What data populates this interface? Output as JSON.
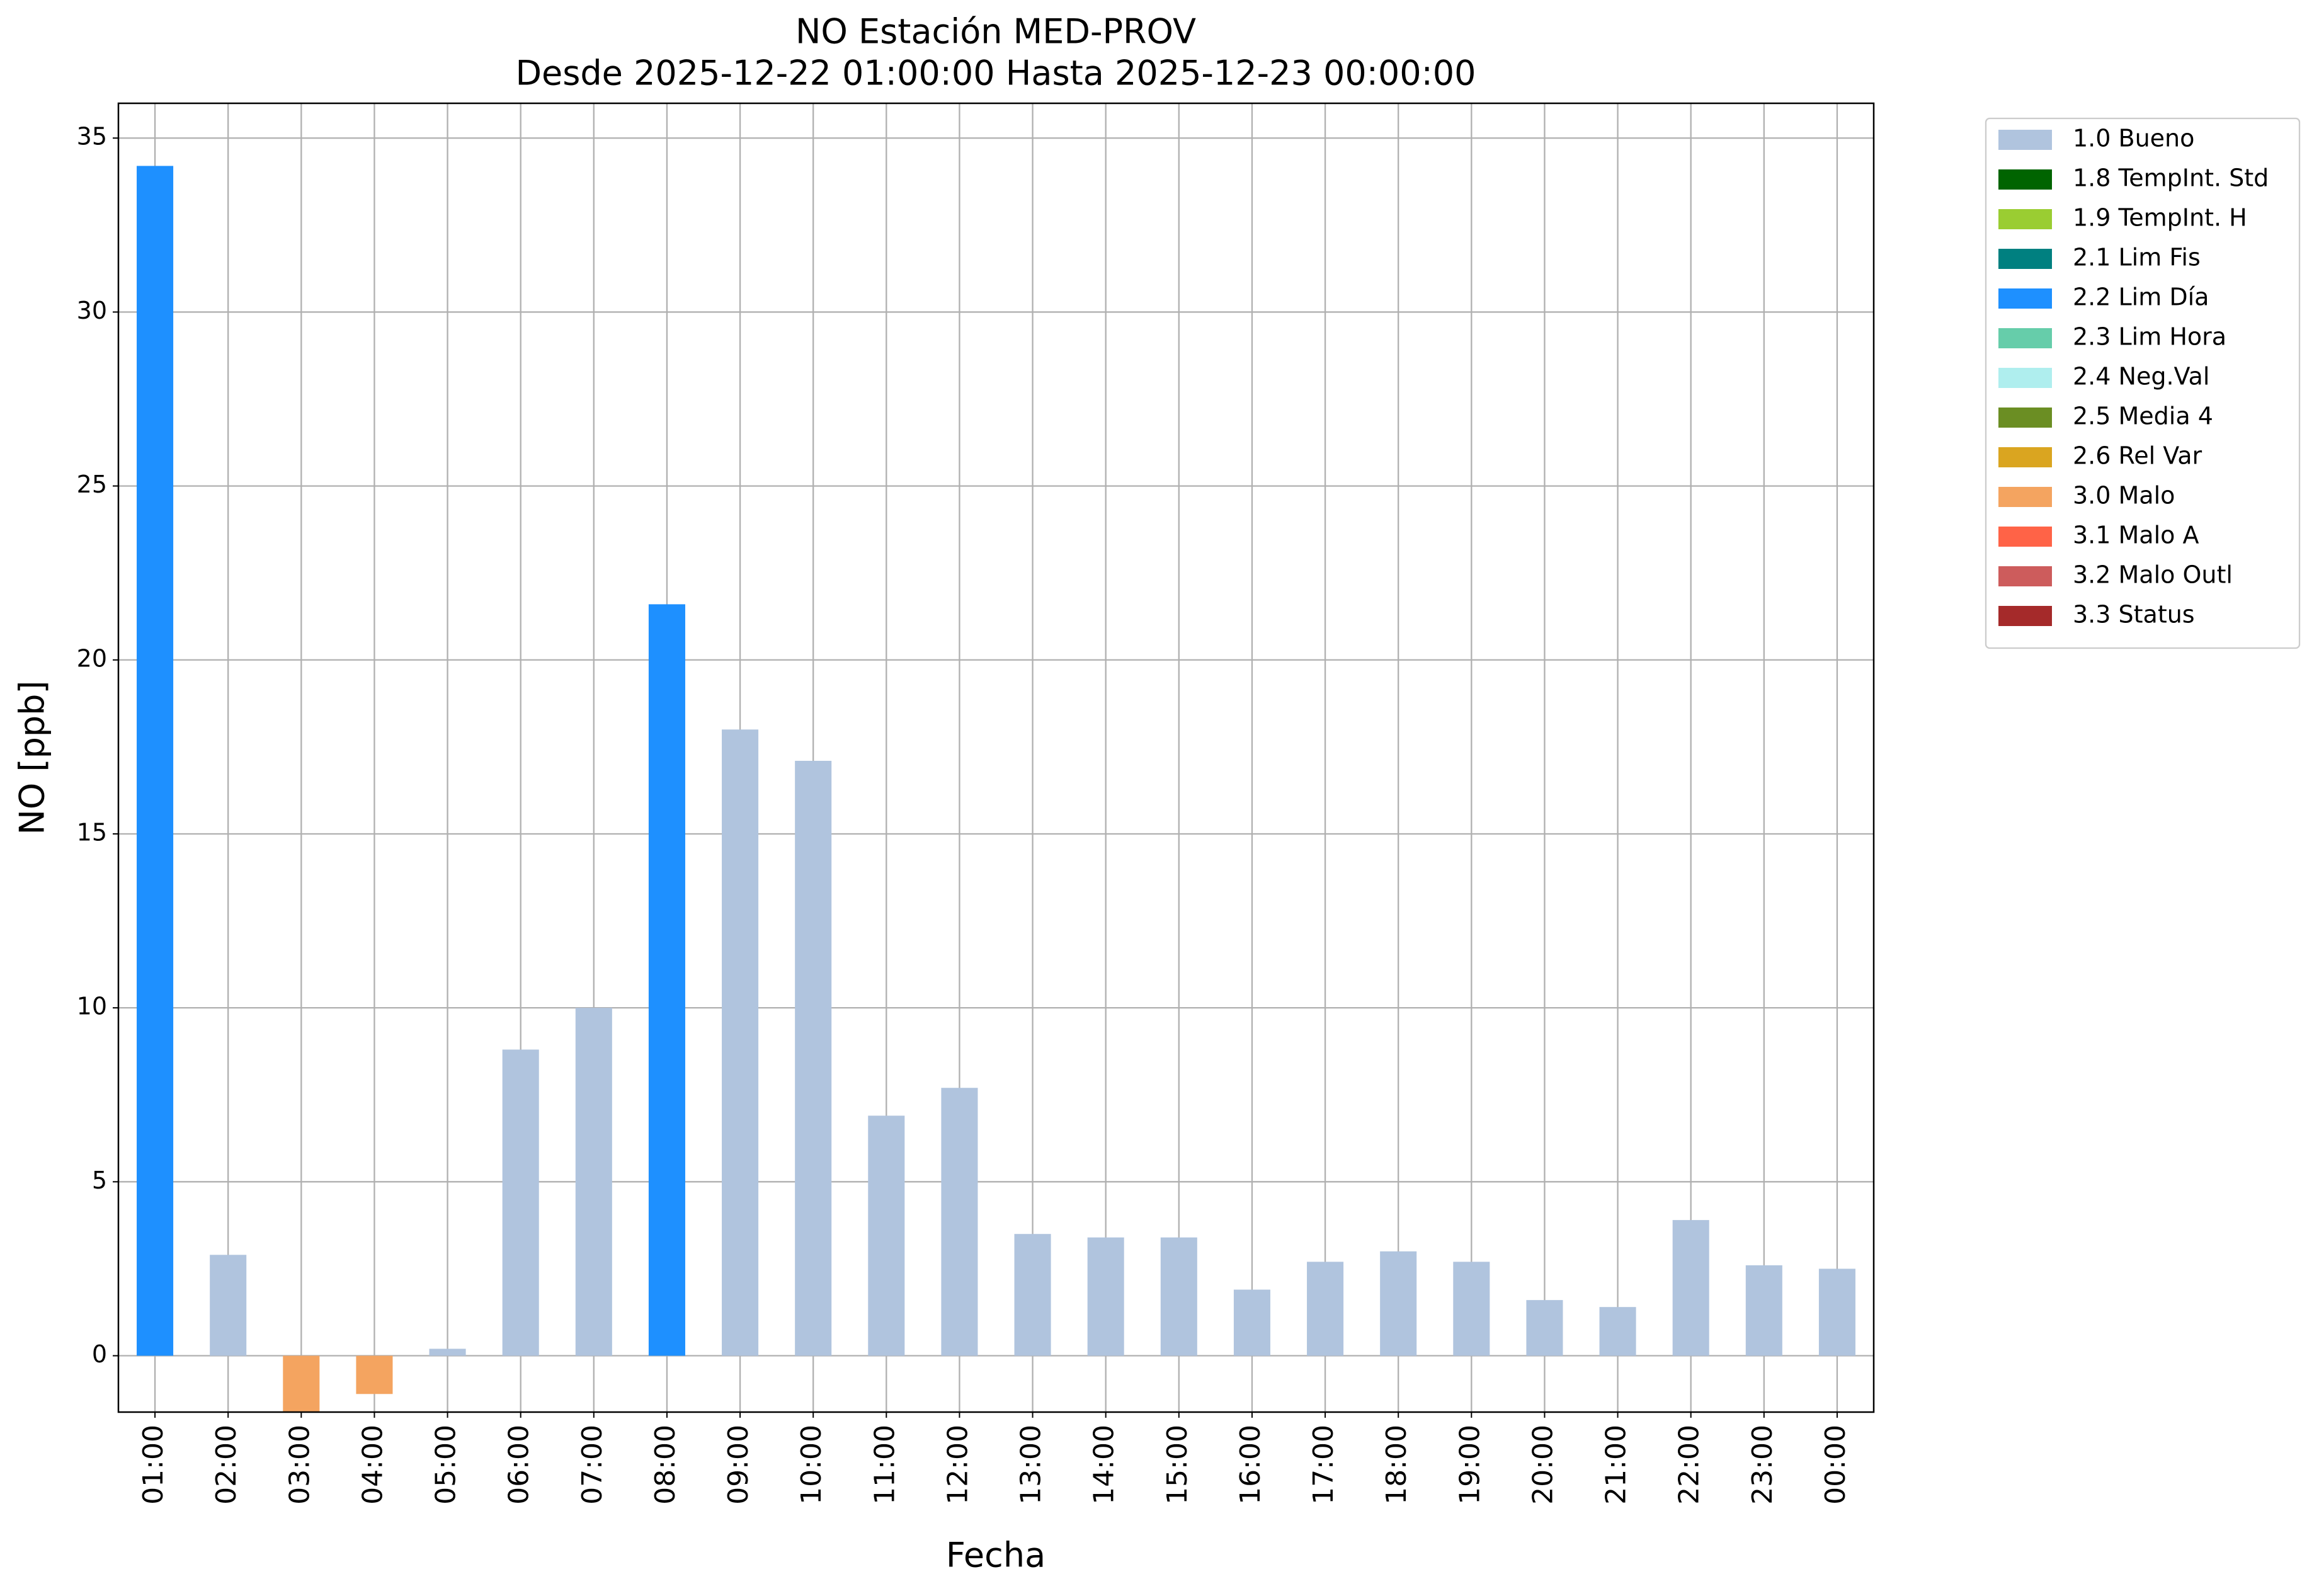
{
  "chart_data": {
    "type": "bar",
    "title": "NO Estación MED-PROV",
    "subtitle": "Desde 2025-12-22 01:00:00 Hasta 2025-12-23 00:00:00",
    "xlabel": "Fecha",
    "ylabel": "NO [ppb]",
    "categories": [
      "01:00",
      "02:00",
      "03:00",
      "04:00",
      "05:00",
      "06:00",
      "07:00",
      "08:00",
      "09:00",
      "10:00",
      "11:00",
      "12:00",
      "13:00",
      "14:00",
      "15:00",
      "16:00",
      "17:00",
      "18:00",
      "19:00",
      "20:00",
      "21:00",
      "22:00",
      "23:00",
      "00:00"
    ],
    "series": [
      {
        "name": "1.0 Bueno",
        "color": "#b0c4de",
        "values": [
          null,
          2.9,
          null,
          null,
          0.2,
          8.8,
          10.0,
          null,
          18.0,
          17.1,
          6.9,
          7.7,
          3.5,
          3.4,
          3.4,
          1.9,
          2.7,
          3.0,
          2.7,
          1.6,
          1.4,
          3.9,
          2.6,
          2.5
        ]
      },
      {
        "name": "1.8 TempInt. Std",
        "color": "#006400",
        "values": [
          null,
          null,
          null,
          null,
          null,
          null,
          null,
          null,
          null,
          null,
          null,
          null,
          null,
          null,
          null,
          null,
          null,
          null,
          null,
          null,
          null,
          null,
          null,
          null
        ]
      },
      {
        "name": "1.9 TempInt. H",
        "color": "#9acd32",
        "values": [
          null,
          null,
          null,
          null,
          null,
          null,
          null,
          null,
          null,
          null,
          null,
          null,
          null,
          null,
          null,
          null,
          null,
          null,
          null,
          null,
          null,
          null,
          null,
          null
        ]
      },
      {
        "name": "2.1 Lim Fis",
        "color": "#008080",
        "values": [
          null,
          null,
          null,
          null,
          null,
          null,
          null,
          null,
          null,
          null,
          null,
          null,
          null,
          null,
          null,
          null,
          null,
          null,
          null,
          null,
          null,
          null,
          null,
          null
        ]
      },
      {
        "name": "2.2 Lim Día",
        "color": "#1e90ff",
        "values": [
          34.2,
          null,
          null,
          null,
          null,
          null,
          null,
          21.6,
          null,
          null,
          null,
          null,
          null,
          null,
          null,
          null,
          null,
          null,
          null,
          null,
          null,
          null,
          null,
          null
        ]
      },
      {
        "name": "2.3 Lim Hora",
        "color": "#66cdaa",
        "values": [
          null,
          null,
          null,
          null,
          null,
          null,
          null,
          null,
          null,
          null,
          null,
          null,
          null,
          null,
          null,
          null,
          null,
          null,
          null,
          null,
          null,
          null,
          null,
          null
        ]
      },
      {
        "name": "2.4 Neg.Val",
        "color": "#afeeee",
        "values": [
          null,
          null,
          null,
          null,
          null,
          null,
          null,
          null,
          null,
          null,
          null,
          null,
          null,
          null,
          null,
          null,
          null,
          null,
          null,
          null,
          null,
          null,
          null,
          null
        ]
      },
      {
        "name": "2.5 Media 4",
        "color": "#6b8e23",
        "values": [
          null,
          null,
          null,
          null,
          null,
          null,
          null,
          null,
          null,
          null,
          null,
          null,
          null,
          null,
          null,
          null,
          null,
          null,
          null,
          null,
          null,
          null,
          null,
          null
        ]
      },
      {
        "name": "2.6 Rel Var",
        "color": "#daa520",
        "values": [
          null,
          null,
          null,
          null,
          null,
          null,
          null,
          null,
          null,
          null,
          null,
          null,
          null,
          null,
          null,
          null,
          null,
          null,
          null,
          null,
          null,
          null,
          null,
          null
        ]
      },
      {
        "name": "3.0 Malo",
        "color": "#f4a460",
        "values": [
          null,
          null,
          -1.6,
          -1.1,
          null,
          null,
          null,
          null,
          null,
          null,
          null,
          null,
          null,
          null,
          null,
          null,
          null,
          null,
          null,
          null,
          null,
          null,
          null,
          null
        ]
      },
      {
        "name": "3.1 Malo A",
        "color": "#ff6347",
        "values": [
          null,
          null,
          null,
          null,
          null,
          null,
          null,
          null,
          null,
          null,
          null,
          null,
          null,
          null,
          null,
          null,
          null,
          null,
          null,
          null,
          null,
          null,
          null,
          null
        ]
      },
      {
        "name": "3.2 Malo Outl",
        "color": "#cd5c5c",
        "values": [
          null,
          null,
          null,
          null,
          null,
          null,
          null,
          null,
          null,
          null,
          null,
          null,
          null,
          null,
          null,
          null,
          null,
          null,
          null,
          null,
          null,
          null,
          null,
          null
        ]
      },
      {
        "name": "3.3 Status",
        "color": "#a52a2a",
        "values": [
          null,
          null,
          null,
          null,
          null,
          null,
          null,
          null,
          null,
          null,
          null,
          null,
          null,
          null,
          null,
          null,
          null,
          null,
          null,
          null,
          null,
          null,
          null,
          null
        ]
      }
    ],
    "ylim": [
      -1.62,
      36.0
    ],
    "yticks": [
      0,
      5,
      10,
      15,
      20,
      25,
      30,
      35
    ],
    "grid": true,
    "legend": "outside right"
  }
}
